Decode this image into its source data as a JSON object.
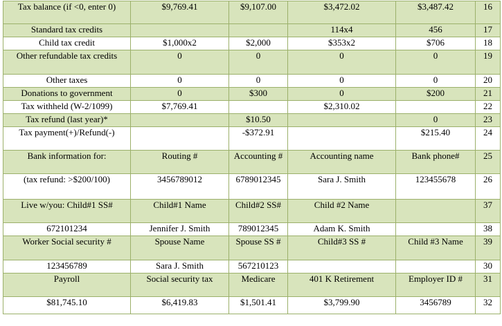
{
  "rows": [
    {
      "cells": [
        "Tax balance (if <0, enter 0)",
        "$9,769.41",
        "$9,107.00",
        "$3,472.02",
        "$3,487.42",
        "16"
      ]
    },
    {
      "cells": [
        "Standard tax credits",
        "",
        "",
        "114x4",
        "456",
        "17"
      ]
    },
    {
      "cells": [
        "Child tax credit",
        "$1,000x2",
        "$2,000",
        "$353x2",
        "$706",
        "18"
      ]
    },
    {
      "cells": [
        "Other refundable tax credits",
        "0",
        "0",
        "0",
        "0",
        "19"
      ]
    },
    {
      "cells": [
        "Other taxes",
        "0",
        "0",
        "0",
        "0",
        "20"
      ]
    },
    {
      "cells": [
        "Donations to government",
        "0",
        "$300",
        "0",
        "$200",
        "21"
      ]
    },
    {
      "cells": [
        "Tax withheld (W-2/1099)",
        "$7,769.41",
        "",
        "$2,310.02",
        "",
        "22"
      ]
    },
    {
      "cells": [
        "Tax refund (last year)*",
        "",
        "$10.50",
        "",
        "0",
        "23"
      ]
    },
    {
      "cells": [
        "Tax payment(+)/Refund(-)",
        "",
        "-$372.91",
        "",
        "$215.40",
        "24"
      ]
    },
    {
      "cells": [
        "Bank information for:",
        "Routing #",
        "Accounting #",
        "Accounting name",
        "Bank phone#",
        "25"
      ]
    },
    {
      "cells": [
        "(tax refund: >$200/100)",
        "3456789012",
        "6789012345",
        "Sara J. Smith",
        "123455678",
        "26"
      ]
    },
    {
      "cells": [
        "Live w/you: Child#1 SS#",
        "Child#1 Name",
        "Child#2 SS#",
        "Child #2 Name",
        "",
        "37"
      ]
    },
    {
      "cells": [
        "672101234",
        "Jennifer J. Smith",
        "789012345",
        "Adam K. Smith",
        "",
        "38"
      ]
    },
    {
      "cells": [
        "Worker Social security #",
        "Spouse Name",
        "Spouse SS #",
        "Child#3 SS #",
        "Child #3 Name",
        "39"
      ]
    },
    {
      "cells": [
        "123456789",
        "Sara J. Smith",
        "567210123",
        "",
        "",
        "30"
      ]
    },
    {
      "cells": [
        "Payroll",
        "Social security tax",
        "Medicare",
        "401 K Retirement",
        "Employer ID #",
        "31"
      ]
    },
    {
      "cells": [
        "$81,745.10",
        "$6,419.83",
        "$1,501.41",
        "$3,799.90",
        "3456789",
        "32"
      ]
    }
  ]
}
